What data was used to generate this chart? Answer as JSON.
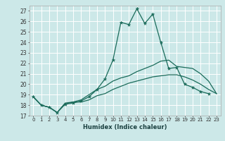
{
  "title": "",
  "xlabel": "Humidex (Indice chaleur)",
  "bg_color": "#cce8e8",
  "grid_color": "#ffffff",
  "line_color": "#1a6b5a",
  "xlim": [
    -0.5,
    23.5
  ],
  "ylim": [
    17,
    27.5
  ],
  "yticks": [
    17,
    18,
    19,
    20,
    21,
    22,
    23,
    24,
    25,
    26,
    27
  ],
  "xticks": [
    0,
    1,
    2,
    3,
    4,
    5,
    6,
    7,
    8,
    9,
    10,
    11,
    12,
    13,
    14,
    15,
    16,
    17,
    18,
    19,
    20,
    21,
    22,
    23
  ],
  "series": [
    {
      "x": [
        0,
        1,
        2,
        3,
        4,
        5,
        6,
        7,
        8,
        9,
        10,
        11,
        12,
        13,
        14,
        15,
        16,
        17,
        18,
        19,
        20,
        21,
        22,
        23
      ],
      "y": [
        18.8,
        18.0,
        17.8,
        17.3,
        18.1,
        18.3,
        18.3,
        18.5,
        18.9,
        19.1,
        19.5,
        19.8,
        20.1,
        20.3,
        20.5,
        20.7,
        20.8,
        20.9,
        20.9,
        20.7,
        20.4,
        20.0,
        19.5,
        19.1
      ],
      "marker": false,
      "lw": 0.9
    },
    {
      "x": [
        0,
        1,
        2,
        3,
        4,
        5,
        6,
        7,
        8,
        9,
        10,
        11,
        12,
        13,
        14,
        15,
        16,
        17,
        18,
        19,
        20,
        21,
        22,
        23
      ],
      "y": [
        18.8,
        18.0,
        17.8,
        17.3,
        18.2,
        18.3,
        18.5,
        19.0,
        19.5,
        19.8,
        20.3,
        20.6,
        20.8,
        21.2,
        21.5,
        21.8,
        22.2,
        22.3,
        21.7,
        21.6,
        21.5,
        21.0,
        20.3,
        19.1
      ],
      "marker": false,
      "lw": 0.9
    },
    {
      "x": [
        0,
        1,
        2,
        3,
        4,
        5,
        6,
        7,
        8,
        9,
        10,
        11,
        12,
        13,
        14,
        15,
        16,
        17,
        18,
        19,
        20,
        21,
        22
      ],
      "y": [
        18.8,
        18.0,
        17.8,
        17.3,
        18.1,
        18.2,
        18.4,
        18.8,
        19.5,
        20.5,
        22.3,
        25.9,
        25.7,
        27.2,
        25.8,
        26.7,
        24.0,
        21.5,
        21.6,
        20.0,
        19.7,
        19.3,
        19.1
      ],
      "marker": true,
      "lw": 0.9
    }
  ]
}
